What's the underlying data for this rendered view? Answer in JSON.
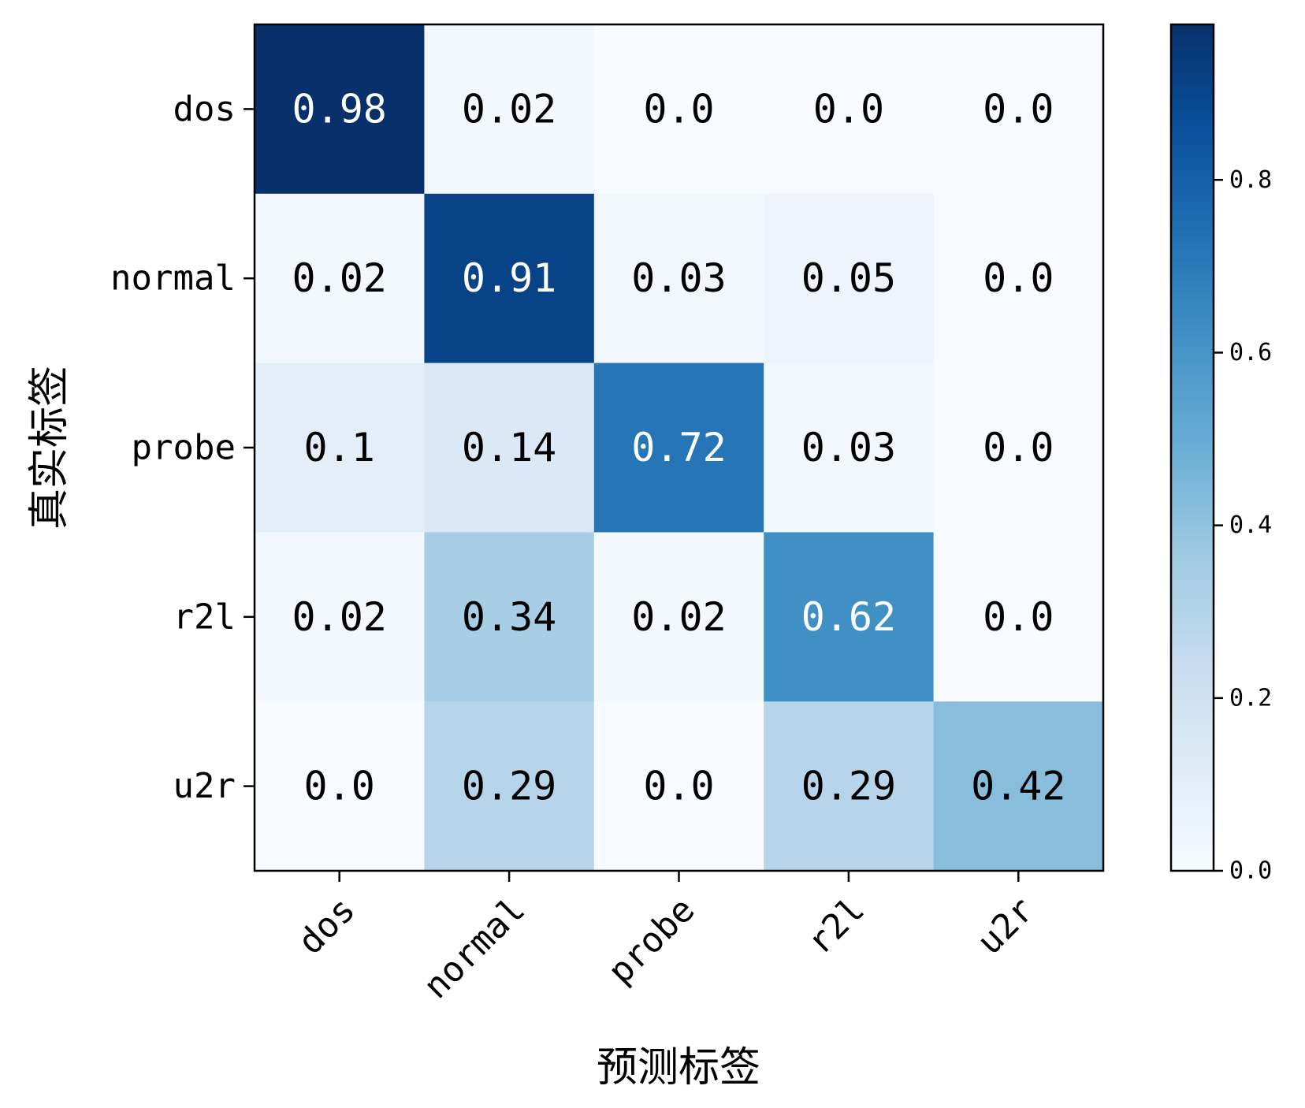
{
  "chart_data": {
    "type": "heatmap",
    "title": "",
    "xlabel": "预测标签",
    "ylabel": "真实标签",
    "x_categories": [
      "dos",
      "normal",
      "probe",
      "r2l",
      "u2r"
    ],
    "y_categories": [
      "dos",
      "normal",
      "probe",
      "r2l",
      "u2r"
    ],
    "values": [
      [
        0.98,
        0.02,
        0.0,
        0.0,
        0.0
      ],
      [
        0.02,
        0.91,
        0.03,
        0.05,
        0.0
      ],
      [
        0.1,
        0.14,
        0.72,
        0.03,
        0.0
      ],
      [
        0.02,
        0.34,
        0.02,
        0.62,
        0.0
      ],
      [
        0.0,
        0.29,
        0.0,
        0.29,
        0.42
      ]
    ],
    "value_labels": [
      [
        "0.98",
        "0.02",
        "0.0",
        "0.0",
        "0.0"
      ],
      [
        "0.02",
        "0.91",
        "0.03",
        "0.05",
        "0.0"
      ],
      [
        "0.1",
        "0.14",
        "0.72",
        "0.03",
        "0.0"
      ],
      [
        "0.02",
        "0.34",
        "0.02",
        "0.62",
        "0.0"
      ],
      [
        "0.0",
        "0.29",
        "0.0",
        "0.29",
        "0.42"
      ]
    ],
    "colormap": "Blues",
    "color_range": [
      0,
      0.98
    ],
    "colorbar": {
      "ticks": [
        0.0,
        0.2,
        0.4,
        0.6,
        0.8
      ],
      "tick_labels": [
        "0.0",
        "0.2",
        "0.4",
        "0.6",
        "0.8"
      ]
    },
    "text_colors": {
      "light": "#ffffff",
      "dark": "#000000"
    },
    "x_tick_rotation": 45,
    "grid": false
  }
}
